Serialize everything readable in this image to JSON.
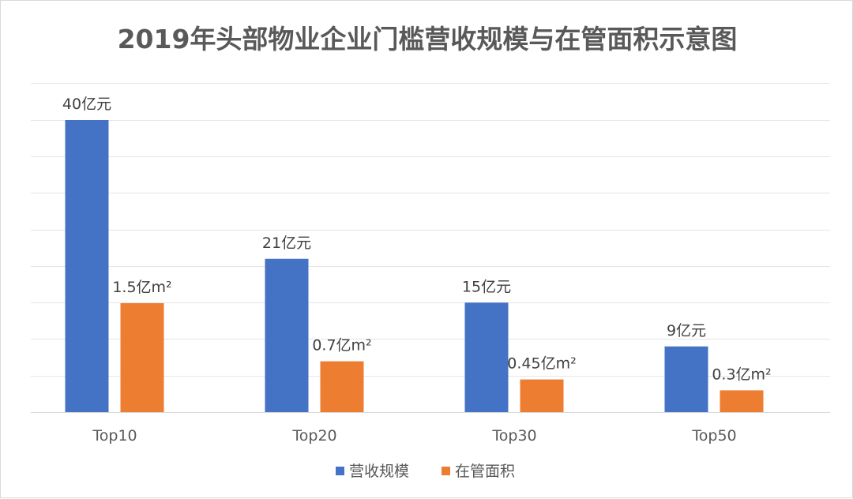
{
  "chart_data": {
    "type": "bar",
    "title": "2019年头部物业企业门槛营收规模与在管面积示意图",
    "categories": [
      "Top10",
      "Top20",
      "Top30",
      "Top50"
    ],
    "series": [
      {
        "name": "营收规模",
        "unit": "亿元",
        "color": "#4472C4",
        "values": [
          40,
          21,
          15,
          9
        ],
        "labels": [
          "40亿元",
          "21亿元",
          "15亿元",
          "9亿元"
        ]
      },
      {
        "name": "在管面积",
        "unit": "亿m²",
        "color": "#ED7D31",
        "values": [
          1.5,
          0.7,
          0.45,
          0.3
        ],
        "labels": [
          "1.5亿m²",
          "0.7亿m²",
          "0.45亿m²",
          "0.3亿m²"
        ]
      }
    ],
    "grid": true,
    "legend": "bottom"
  }
}
